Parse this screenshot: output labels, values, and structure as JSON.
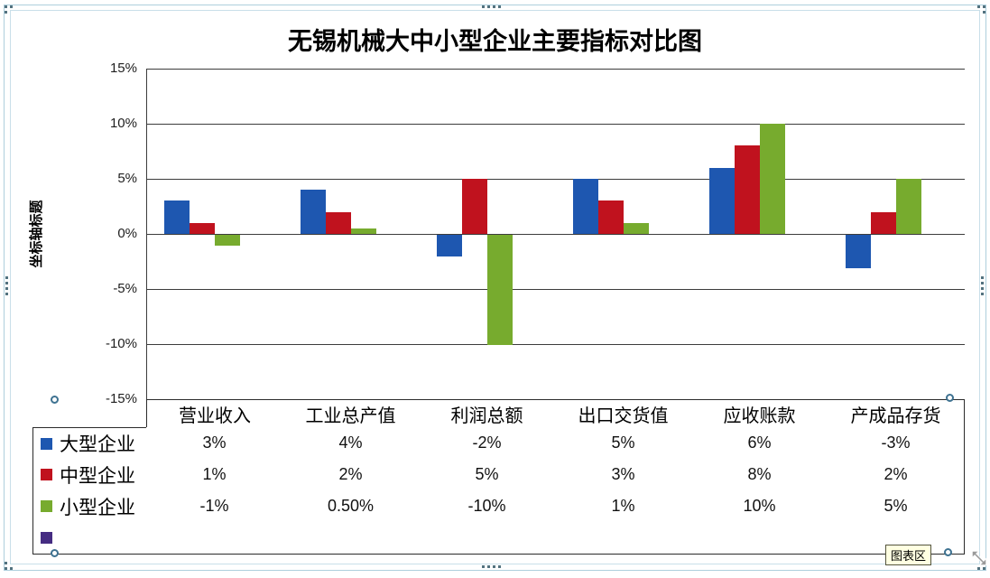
{
  "window": {
    "tooltip": "图表区"
  },
  "chart_data": {
    "type": "bar",
    "title": "无锡机械大中小型企业主要指标对比图",
    "y_axis_title": "坐标轴标题",
    "categories": [
      "营业收入",
      "工业总产值",
      "利润总额",
      "出口交货值",
      "应收账款",
      "产成品存货"
    ],
    "series": [
      {
        "name": "大型企业",
        "color": "#1e57b0",
        "values": [
          3,
          4,
          -2,
          5,
          6,
          -3
        ],
        "display": [
          "3%",
          "4%",
          "-2%",
          "5%",
          "6%",
          "-3%"
        ]
      },
      {
        "name": "中型企业",
        "color": "#c0121e",
        "values": [
          1,
          2,
          5,
          3,
          8,
          2
        ],
        "display": [
          "1%",
          "2%",
          "5%",
          "3%",
          "8%",
          "2%"
        ]
      },
      {
        "name": "小型企业",
        "color": "#77ab2e",
        "values": [
          -1,
          0.5,
          -10,
          1,
          10,
          5
        ],
        "display": [
          "-1%",
          "0.50%",
          "-10%",
          "1%",
          "10%",
          "5%"
        ]
      },
      {
        "name": "",
        "color": "#452c82",
        "values": [],
        "display": [
          "",
          "",
          "",
          "",
          "",
          ""
        ]
      }
    ],
    "y_tick_labels": [
      "15%",
      "10%",
      "5%",
      "0%",
      "-5%",
      "-10%",
      "-15%"
    ],
    "y_tick_values": [
      15,
      10,
      5,
      0,
      -5,
      -10,
      -15
    ],
    "ylim": [
      -15,
      15
    ],
    "grid": true,
    "legend_position": "data-table-left",
    "data_table_shown": true
  }
}
